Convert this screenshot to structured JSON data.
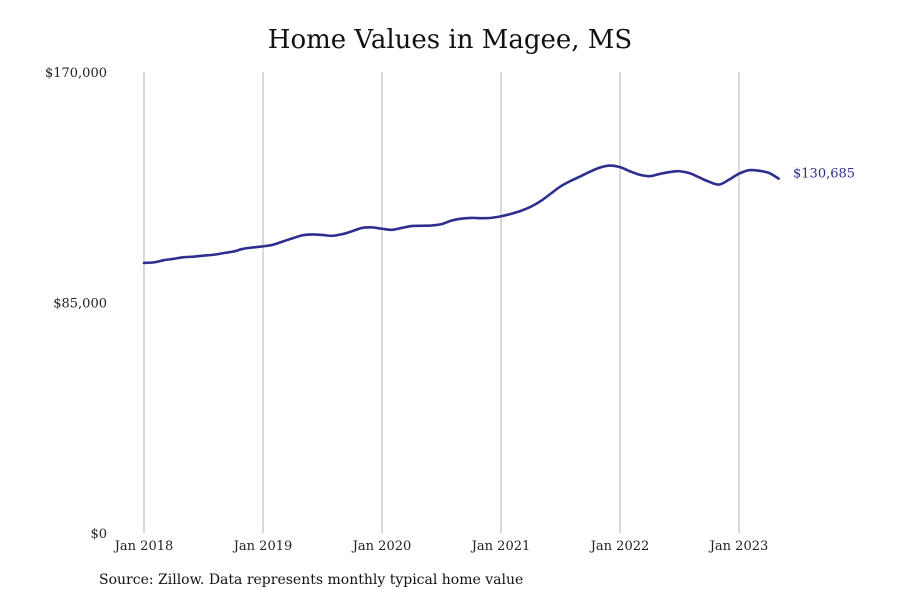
{
  "chart_data": {
    "type": "line",
    "title": "Home Values in Magee, MS",
    "xlabel": "",
    "ylabel": "",
    "x_ticks": [
      "Jan 2018",
      "Jan 2019",
      "Jan 2020",
      "Jan 2021",
      "Jan 2022",
      "Jan 2023"
    ],
    "y_ticks": [
      "$0",
      "$85,000",
      "$170,000"
    ],
    "y_tick_values": [
      0,
      85000,
      170000
    ],
    "ylim": [
      0,
      170000
    ],
    "xlim": [
      "2018-01",
      "2024-01"
    ],
    "grid": "vertical",
    "legend": "none",
    "line_color": "#2e2e8f",
    "end_label": "$130,685",
    "series": [
      {
        "x": [
          "2018-01",
          "2018-02",
          "2018-03",
          "2018-04",
          "2018-05",
          "2018-06",
          "2018-07",
          "2018-08",
          "2018-09",
          "2018-10",
          "2018-11",
          "2018-12",
          "2019-01",
          "2019-02",
          "2019-03",
          "2019-04",
          "2019-05",
          "2019-06",
          "2019-07",
          "2019-08",
          "2019-09",
          "2019-10",
          "2019-11",
          "2019-12",
          "2020-01",
          "2020-02",
          "2020-03",
          "2020-04",
          "2020-05",
          "2020-06",
          "2020-07",
          "2020-08",
          "2020-09",
          "2020-10",
          "2020-11",
          "2020-12",
          "2021-01",
          "2021-02",
          "2021-03",
          "2021-04",
          "2021-05",
          "2021-06",
          "2021-07",
          "2021-08",
          "2021-09",
          "2021-10",
          "2021-11",
          "2021-12",
          "2022-01",
          "2022-02",
          "2022-03",
          "2022-04",
          "2022-05",
          "2022-06",
          "2022-07",
          "2022-08",
          "2022-09",
          "2022-10",
          "2022-11",
          "2022-12",
          "2023-01",
          "2023-02",
          "2023-03",
          "2023-04",
          "2023-05"
        ],
        "values": [
          99600,
          99800,
          100600,
          101100,
          101700,
          101900,
          102300,
          102600,
          103200,
          103800,
          104800,
          105300,
          105700,
          106300,
          107500,
          108700,
          109800,
          110100,
          109900,
          109600,
          110200,
          111300,
          112500,
          112700,
          112200,
          111800,
          112500,
          113200,
          113300,
          113400,
          113900,
          115200,
          115900,
          116200,
          116100,
          116200,
          116800,
          117700,
          118800,
          120300,
          122400,
          125100,
          127800,
          129800,
          131500,
          133300,
          134800,
          135500,
          134900,
          133400,
          132100,
          131600,
          132400,
          133100,
          133400,
          132700,
          131100,
          129500,
          128500,
          130300,
          132500,
          133800,
          133600,
          132800,
          130685
        ]
      }
    ]
  },
  "footer": {
    "source": "Source: Zillow. Data represents monthly typical home value"
  }
}
